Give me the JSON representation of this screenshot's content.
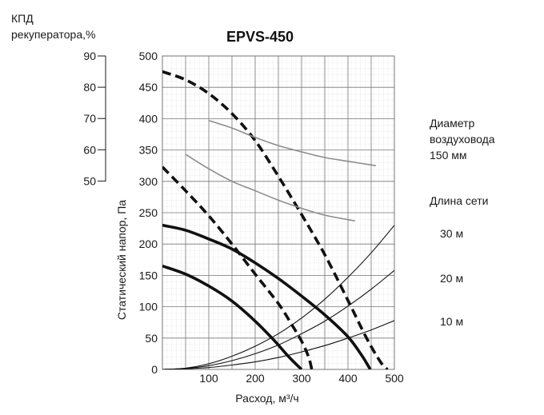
{
  "chart_data": {
    "type": "line",
    "title": "EPVS-450",
    "xlabel": "Расход, м³/ч",
    "ylabel": "Статический напор, Па",
    "efficiency_axis_label": [
      "КПД",
      "рекуператора,%"
    ],
    "xlim": [
      0,
      500
    ],
    "ylim": [
      0,
      500
    ],
    "x_ticks": [
      0,
      100,
      200,
      300,
      400,
      500
    ],
    "y_ticks": [
      0,
      50,
      100,
      150,
      200,
      250,
      300,
      350,
      400,
      450,
      500
    ],
    "efficiency_ticks": [
      90,
      80,
      70,
      60,
      50
    ],
    "grid": true,
    "right_labels": {
      "duct_title": [
        "Диаметр",
        "воздуховода",
        "150 мм"
      ],
      "network_title": "Длина сети",
      "network_lengths": [
        "30 м",
        "20 м",
        "10 м"
      ]
    },
    "series": [
      {
        "style": "dashed-thick",
        "x": [
          0,
          50,
          100,
          150,
          200,
          250,
          300,
          350,
          400,
          440,
          470,
          485
        ],
        "y": [
          475,
          462,
          440,
          408,
          365,
          308,
          247,
          183,
          110,
          50,
          12,
          0
        ]
      },
      {
        "style": "dashed-thick",
        "x": [
          0,
          50,
          100,
          150,
          200,
          250,
          280,
          300,
          315,
          322
        ],
        "y": [
          323,
          285,
          245,
          200,
          152,
          105,
          70,
          45,
          20,
          0
        ]
      },
      {
        "style": "solid-thick",
        "x": [
          0,
          50,
          100,
          150,
          200,
          250,
          300,
          350,
          400,
          430,
          448
        ],
        "y": [
          230,
          222,
          208,
          192,
          170,
          145,
          117,
          87,
          52,
          22,
          0
        ]
      },
      {
        "style": "solid-thick",
        "x": [
          0,
          50,
          100,
          150,
          200,
          240,
          270,
          290,
          300
        ],
        "y": [
          165,
          152,
          133,
          109,
          77,
          47,
          22,
          7,
          0
        ]
      },
      {
        "style": "gray",
        "x": [
          100,
          150,
          200,
          250,
          300,
          350,
          400,
          460
        ],
        "y": [
          397,
          385,
          370,
          357,
          347,
          338,
          332,
          325
        ]
      },
      {
        "style": "gray",
        "x": [
          50,
          100,
          150,
          200,
          250,
          300,
          350,
          415
        ],
        "y": [
          343,
          320,
          300,
          285,
          270,
          257,
          246,
          237
        ]
      },
      {
        "style": "solid-thin",
        "x": [
          0,
          50,
          100,
          150,
          200,
          250,
          300,
          350,
          400,
          450,
          500
        ],
        "y": [
          0,
          2,
          9,
          21,
          37,
          57,
          82,
          112,
          147,
          186,
          230
        ]
      },
      {
        "style": "solid-thin",
        "x": [
          0,
          50,
          100,
          150,
          200,
          250,
          300,
          350,
          400,
          450,
          500
        ],
        "y": [
          0,
          1.5,
          6,
          14,
          25,
          39,
          57,
          77,
          101,
          128,
          158
        ]
      },
      {
        "style": "solid-thin",
        "x": [
          0,
          50,
          100,
          150,
          200,
          250,
          300,
          350,
          400,
          450,
          500
        ],
        "y": [
          0,
          1,
          3,
          7,
          12,
          19,
          28,
          38,
          50,
          63,
          78
        ]
      }
    ]
  }
}
